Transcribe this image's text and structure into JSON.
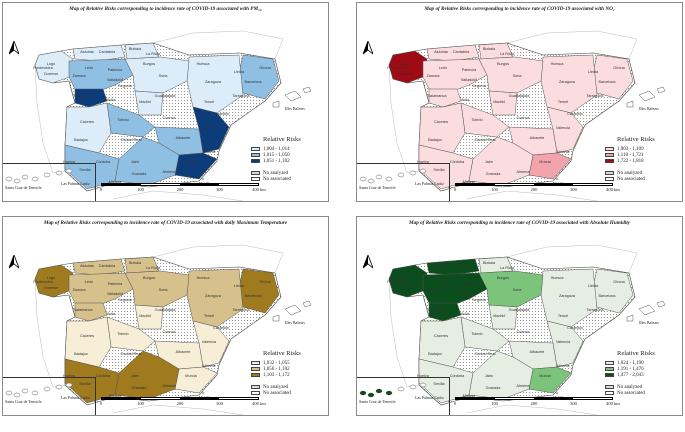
{
  "panels": [
    {
      "title": "Map of Relative Risks corresponding to incidence rate of COVID-19 associated with PM₁₀",
      "legend_title": "Relative Risks",
      "classes": [
        {
          "label": "1,004 - 1,014",
          "color": "#dcedf9"
        },
        {
          "label": "1,015 - 1,050",
          "color": "#8fbfe2"
        },
        {
          "label": "1,051 - 1,102",
          "color": "#0d3c7a"
        }
      ],
      "no_analyzed": "No analyzed",
      "no_associated": "No associated",
      "region_colors": {
        "galicia": "#dcedf9",
        "cantabria": "#dcedf9",
        "paisvasco": "#dcedf9",
        "cataluna": "#8fbfe2",
        "castillaleon": "#8fbfe2",
        "salamanca": "#0d3c7a",
        "cyl_east": "#dcedf9",
        "madrid": "#dcedf9",
        "toledo": "#8fbfe2",
        "albacete": "#8fbfe2",
        "murcia": "#0d3c7a",
        "valencia": "#0d3c7a",
        "andalucia_w": "#8fbfe2",
        "andalucia_e": "#8fbfe2",
        "extremadura": "#dcedf9",
        "zaragoza": "#dcedf9"
      }
    },
    {
      "title": "Map of Relative Risks corresponding to incidence rate of COVID-19 associated with NO₂",
      "legend_title": "Relative Risks",
      "classes": [
        {
          "label": "1,003 - 1,109",
          "color": "#fbdde0"
        },
        {
          "label": "1,110 - 1,721",
          "color": "#f2a3ab"
        },
        {
          "label": "1,722 - 1,818",
          "color": "#9e0b14"
        }
      ],
      "no_analyzed": "No analyzed",
      "no_associated": "No associated",
      "region_colors": {
        "galicia": "#9e0b14",
        "cantabria": "#fbdde0",
        "paisvasco": "#fbdde0",
        "cataluna": "#fbdde0",
        "castillaleon": "#fbdde0",
        "salamanca": "#fbdde0",
        "cyl_east": "#fbdde0",
        "madrid": "#fbdde0",
        "toledo": "#fbdde0",
        "albacete": "#fbdde0",
        "murcia": "#f2a3ab",
        "valencia": "#fbdde0",
        "andalucia_w": "#fbdde0",
        "andalucia_e": "#fbdde0",
        "extremadura": "#fbdde0",
        "zaragoza": "#fbdde0"
      }
    },
    {
      "title": "Map of Relative Risks corresponding to incidence rate of COVID-19 associated with daily Maximum Temperature",
      "legend_title": "Relative Risks",
      "classes": [
        {
          "label": "1,032 - 1,055",
          "color": "#f6eed6"
        },
        {
          "label": "1,056 - 1,102",
          "color": "#d6c08b"
        },
        {
          "label": "1,103 - 1,172",
          "color": "#a07a1e"
        }
      ],
      "no_analyzed": "No analyzed",
      "no_associated": "No associated",
      "region_colors": {
        "galicia": "#a07a1e",
        "cantabria": "#d6c08b",
        "paisvasco": "#d6c08b",
        "cataluna": "#a07a1e",
        "castillaleon": "#d6c08b",
        "salamanca": "#d6c08b",
        "cyl_east": "#d6c08b",
        "madrid": "#f6eed6",
        "toledo": "#f6eed6",
        "albacete": "#f6eed6",
        "murcia": "#f6eed6",
        "valencia": "#f6eed6",
        "andalucia_w": "#a07a1e",
        "andalucia_e": "#a07a1e",
        "extremadura": "#f6eed6",
        "zaragoza": "#d6c08b"
      }
    },
    {
      "title": "Map of Relative Risks corresponding to incidence rate of COVID-19 associated with Absolute Humidity",
      "legend_title": "Relative Risks",
      "classes": [
        {
          "label": "1,024 - 1,190",
          "color": "#e6ede2"
        },
        {
          "label": "1,191 - 1,476",
          "color": "#7cc47c"
        },
        {
          "label": "1,477 - 2,043",
          "color": "#0b4d1c"
        }
      ],
      "no_analyzed": "No analyzed",
      "no_associated": "No associated",
      "region_colors": {
        "galicia": "#0b4d1c",
        "cantabria": "#0b4d1c",
        "paisvasco": "#e6ede2",
        "cataluna": "#e6ede2",
        "castillaleon": "#0b4d1c",
        "salamanca": "#0b4d1c",
        "cyl_east": "#7cc47c",
        "madrid": "#e6ede2",
        "toledo": "#e6ede2",
        "albacete": "#e6ede2",
        "murcia": "#7cc47c",
        "valencia": "#e6ede2",
        "andalucia_w": "#e6ede2",
        "andalucia_e": "#e6ede2",
        "extremadura": "#e6ede2",
        "zaragoza": "#e6ede2"
      }
    }
  ],
  "scale_labels": [
    "0",
    "100",
    "200",
    "300",
    "400 km"
  ],
  "island_labels": {
    "tenerife": "Santa Cruz de Tenerife",
    "palmas": "Las Palmas",
    "baleares": "Illes Balears",
    "melilla": "Melilla"
  },
  "place_labels": [
    "Lugo",
    "Asturias",
    "Cantabria",
    "Bizkaia",
    "León",
    "Palencia",
    "Burgos",
    "Ourense",
    "Zamora",
    "Valladolid",
    "Soria",
    "Huesca",
    "Zaragoza",
    "Salamanca",
    "Segovia",
    "Guadalajara",
    "Ávila",
    "Madrid",
    "Teruel",
    "Toledo",
    "Cuenca",
    "Castellón",
    "Valencia",
    "Cáceres",
    "Badajoz",
    "Ciudad Real",
    "Albacete",
    "Alicante",
    "Murcia",
    "Córdoba",
    "Jaén",
    "Sevilla",
    "Huelva",
    "Granada",
    "Almería",
    "Málaga",
    "Cádiz",
    "Barcelona",
    "Girona",
    "Lleida",
    "Tarragona",
    "Pontevedra",
    "La Rioja"
  ]
}
